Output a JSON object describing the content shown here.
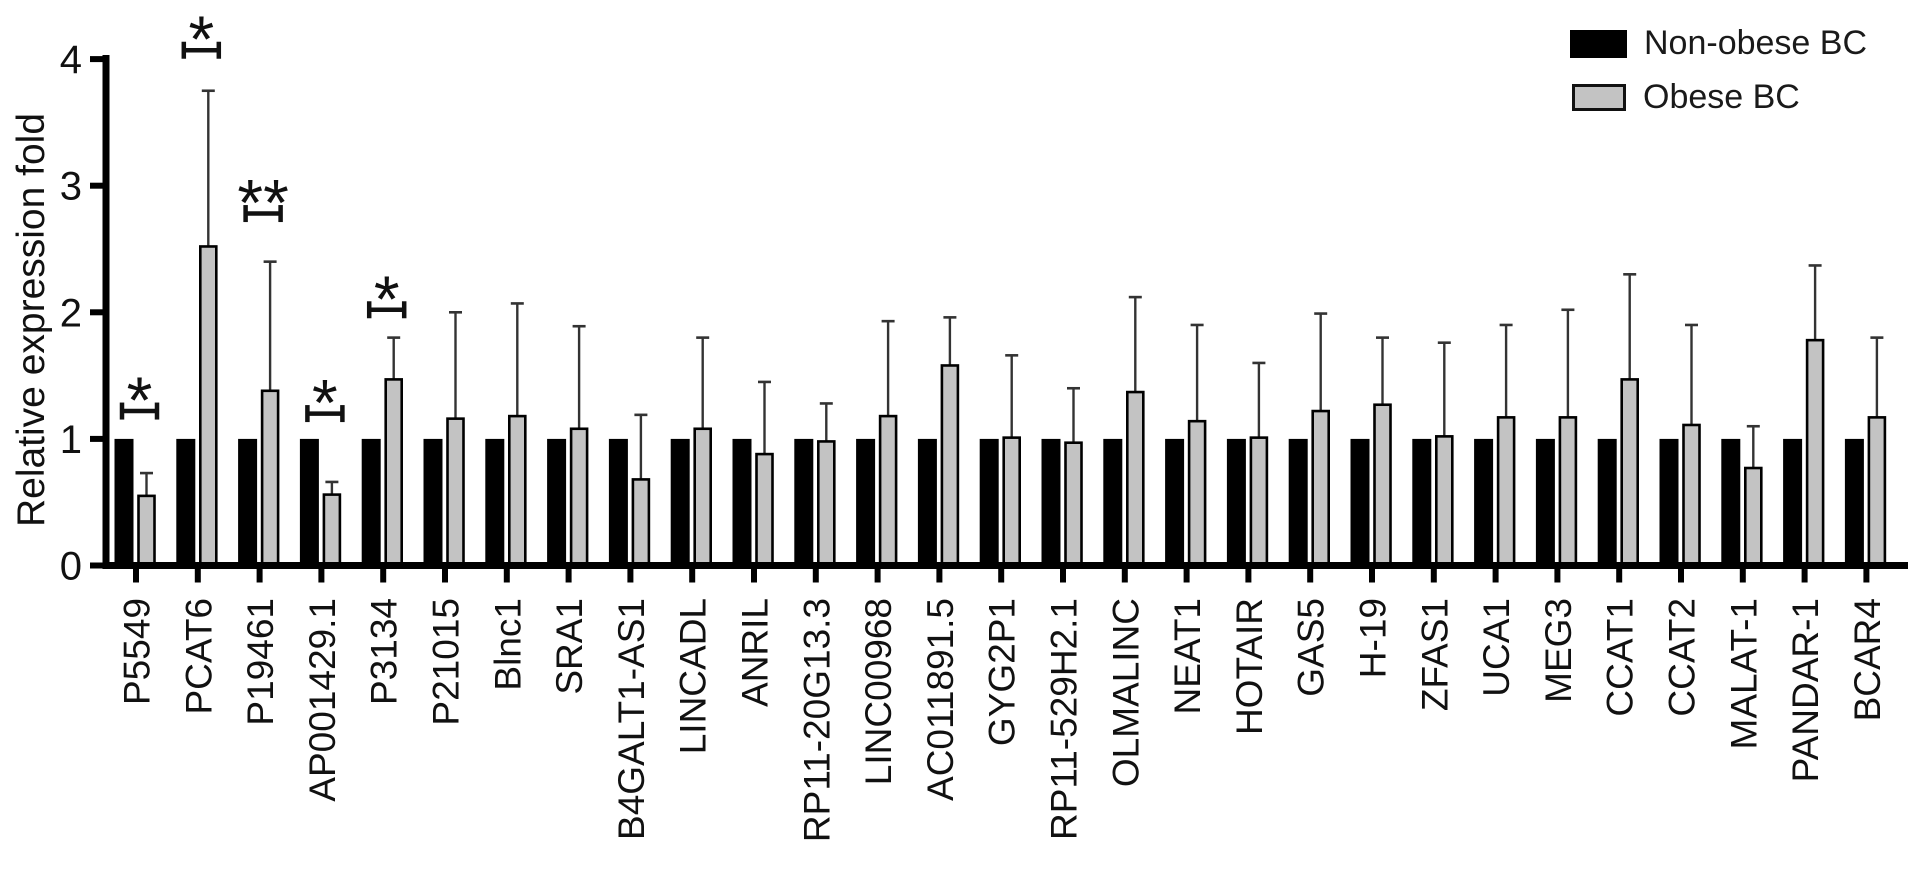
{
  "figure": {
    "ylabel": "Relative expression fold"
  },
  "chart_data": {
    "type": "bar",
    "title": "",
    "xlabel": "",
    "ylabel": "Relative expression fold",
    "ylim": [
      0,
      4
    ],
    "y_ticks": [
      0,
      1,
      2,
      3,
      4
    ],
    "grid": false,
    "legend_position": "top-right",
    "categories": [
      "P5549",
      "PCAT6",
      "P19461",
      "AP001429.1",
      "P3134",
      "P21015",
      "Blnc1",
      "SRA1",
      "B4GALT1-AS1",
      "LINCADL",
      "ANRIL",
      "RP11-20G13.3",
      "LINC00968",
      "AC011891.5",
      "GYG2P1",
      "RP11-529H2.1",
      "OLMALINC",
      "NEAT1",
      "HOTAIR",
      "GAS5",
      "H-19",
      "ZFAS1",
      "UCA1",
      "MEG3",
      "CCAT1",
      "CCAT2",
      "MALAT-1",
      "PANDAR-1",
      "BCAR4"
    ],
    "series": [
      {
        "name": "Non-obese BC",
        "color": "#000000",
        "values": [
          1,
          1,
          1,
          1,
          1,
          1,
          1,
          1,
          1,
          1,
          1,
          1,
          1,
          1,
          1,
          1,
          1,
          1,
          1,
          1,
          1,
          1,
          1,
          1,
          1,
          1,
          1,
          1,
          1
        ],
        "error_upper": null
      },
      {
        "name": "Obese BC",
        "color": "#c3c3c3",
        "values": [
          0.55,
          2.52,
          1.38,
          0.56,
          1.47,
          1.16,
          1.18,
          1.08,
          0.68,
          1.08,
          0.88,
          0.98,
          1.18,
          1.58,
          1.01,
          0.97,
          1.37,
          1.14,
          1.01,
          1.22,
          1.27,
          1.02,
          1.17,
          1.17,
          1.47,
          1.11,
          0.77,
          1.78,
          1.17
        ],
        "error_upper": [
          0.73,
          3.75,
          2.4,
          0.66,
          1.8,
          2.0,
          2.07,
          1.89,
          1.19,
          1.8,
          1.45,
          1.28,
          1.93,
          1.96,
          1.66,
          1.4,
          2.12,
          1.9,
          1.6,
          1.99,
          1.8,
          1.76,
          1.9,
          2.02,
          2.3,
          1.9,
          1.1,
          2.37,
          1.8
        ]
      }
    ],
    "significance": [
      {
        "category": "P5549",
        "label": "*",
        "bracket_y": 1.22
      },
      {
        "category": "PCAT6",
        "label": "*",
        "bracket_y": 4.07
      },
      {
        "category": "P19461",
        "label": "**",
        "bracket_y": 2.78
      },
      {
        "category": "AP001429.1",
        "label": "*",
        "bracket_y": 1.2
      },
      {
        "category": "P3134",
        "label": "*",
        "bracket_y": 2.02
      }
    ]
  }
}
